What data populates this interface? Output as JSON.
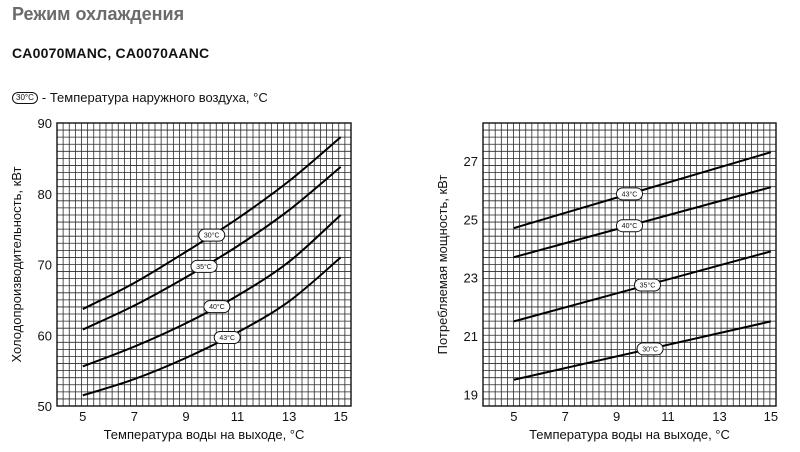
{
  "title": "Режим охлаждения",
  "model": "CA0070MANC, CA0070AANC",
  "legend": {
    "badge": "30°C",
    "text": "- Температура наружного воздуха, °C"
  },
  "chart_data": [
    {
      "type": "line",
      "xlabel": "Температура воды на выходе, °C",
      "ylabel": "Холодопроизводительность, кВт",
      "xlim": [
        4,
        15.4
      ],
      "ylim": [
        50,
        90
      ],
      "xticks": [
        5,
        7,
        9,
        11,
        13,
        15
      ],
      "yticks": [
        50,
        60,
        70,
        80,
        90
      ],
      "grid": true,
      "series": [
        {
          "name": "30°C",
          "x": [
            5,
            7,
            9,
            11,
            13,
            15
          ],
          "y": [
            63.7,
            67.4,
            71.8,
            76.5,
            81.8,
            88.0
          ]
        },
        {
          "name": "35°C",
          "x": [
            5,
            7,
            9,
            11,
            13,
            15
          ],
          "y": [
            60.8,
            64.2,
            68.2,
            72.6,
            77.7,
            83.8
          ]
        },
        {
          "name": "40°C",
          "x": [
            5,
            7,
            9,
            11,
            13,
            15
          ],
          "y": [
            55.6,
            58.4,
            61.7,
            65.6,
            70.4,
            77.0
          ]
        },
        {
          "name": "43°C",
          "x": [
            5,
            7,
            9,
            11,
            13,
            15
          ],
          "y": [
            51.5,
            53.8,
            56.8,
            60.4,
            64.8,
            71.0
          ]
        }
      ],
      "label_x": [
        10,
        9.7,
        10.2,
        10.6
      ]
    },
    {
      "type": "line",
      "xlabel": "Температура воды на выходе, °C",
      "ylabel": "Потребляемая мощность, кВт",
      "xlim": [
        3.8,
        15.2
      ],
      "ylim": [
        18.6,
        28.3
      ],
      "xticks": [
        5,
        7,
        9,
        11,
        13,
        15
      ],
      "yticks": [
        19,
        21,
        23,
        25,
        27
      ],
      "grid": true,
      "series": [
        {
          "name": "43°C",
          "x": [
            5,
            15
          ],
          "y": [
            24.7,
            27.3
          ]
        },
        {
          "name": "40°C",
          "x": [
            5,
            15
          ],
          "y": [
            23.7,
            26.1
          ]
        },
        {
          "name": "35°C",
          "x": [
            5,
            15
          ],
          "y": [
            21.5,
            23.9
          ]
        },
        {
          "name": "30°C",
          "x": [
            5,
            15
          ],
          "y": [
            19.5,
            21.5
          ]
        }
      ],
      "label_x": [
        9.5,
        9.5,
        10.2,
        10.3
      ]
    }
  ]
}
